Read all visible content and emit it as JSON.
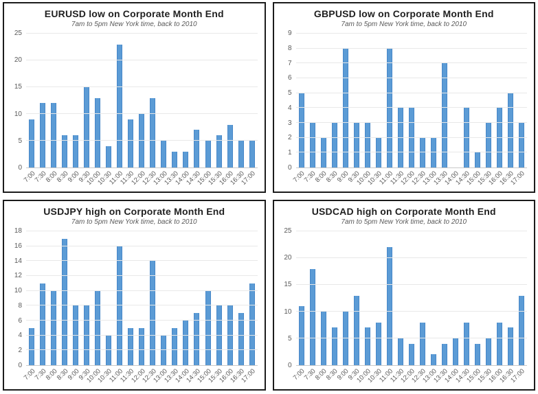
{
  "page": {
    "background_color": "#ffffff",
    "panel_border_color": "#1b1b1b",
    "accent_color": "#5B9BD5",
    "text_color": "#595959",
    "title_color": "#1f1f1f"
  },
  "chart_data": [
    {
      "type": "bar",
      "title": "EURUSD low on Corporate Month End",
      "subtitle": "7am to 5pm New York time, back to 2010",
      "categories": [
        "7:00",
        "7:30",
        "8:00",
        "8:30",
        "9:00",
        "9:30",
        "10:00",
        "10:30",
        "11:00",
        "11:30",
        "12:00",
        "12:30",
        "13:00",
        "13:30",
        "14:00",
        "14:30",
        "15:00",
        "15:30",
        "16:00",
        "16:30",
        "17:00"
      ],
      "values": [
        9,
        12,
        12,
        6,
        6,
        15,
        13,
        4,
        23,
        9,
        10,
        13,
        5,
        3,
        3,
        7,
        5,
        6,
        8,
        5,
        5
      ],
      "xlabel": "",
      "ylabel": "",
      "ylim": [
        0,
        25
      ],
      "yticks": [
        0,
        5,
        10,
        15,
        20,
        25
      ],
      "bar_color": "#5B9BD5",
      "grid": true,
      "legend": "none",
      "xlabel_rotation_deg": 45
    },
    {
      "type": "bar",
      "title": "GBPUSD low on Corporate Month End",
      "subtitle": "7am to 5pm New York time, back to 2010",
      "categories": [
        "7:00",
        "7:30",
        "8:00",
        "8:30",
        "9:00",
        "9:30",
        "10:00",
        "10:30",
        "11:00",
        "11:30",
        "12:00",
        "12:30",
        "13:00",
        "13:30",
        "14:00",
        "14:30",
        "15:00",
        "15:30",
        "16:00",
        "16:30",
        "17:00"
      ],
      "values": [
        5,
        3,
        2,
        3,
        8,
        3,
        3,
        2,
        8,
        4,
        4,
        2,
        2,
        7,
        0,
        4,
        1,
        3,
        4,
        5,
        3
      ],
      "xlabel": "",
      "ylabel": "",
      "ylim": [
        0,
        9
      ],
      "yticks": [
        0,
        1,
        2,
        3,
        4,
        5,
        6,
        7,
        8,
        9
      ],
      "bar_color": "#5B9BD5",
      "grid": true,
      "legend": "none",
      "xlabel_rotation_deg": 45
    },
    {
      "type": "bar",
      "title": "USDJPY high on Corporate Month End",
      "subtitle": "7am to 5pm New York time, back to 2010",
      "categories": [
        "7:00",
        "7:30",
        "8:00",
        "8:30",
        "9:00",
        "9:30",
        "10:00",
        "10:30",
        "11:00",
        "11:30",
        "12:00",
        "12:30",
        "13:00",
        "13:30",
        "14:00",
        "14:30",
        "15:00",
        "15:30",
        "16:00",
        "16:30",
        "17:00"
      ],
      "values": [
        5,
        11,
        10,
        17,
        8,
        8,
        10,
        4,
        16,
        5,
        5,
        14,
        4,
        5,
        6,
        7,
        10,
        8,
        8,
        7,
        11
      ],
      "xlabel": "",
      "ylabel": "",
      "ylim": [
        0,
        18
      ],
      "yticks": [
        0,
        2,
        4,
        6,
        8,
        10,
        12,
        14,
        16,
        18
      ],
      "bar_color": "#5B9BD5",
      "grid": true,
      "legend": "none",
      "xlabel_rotation_deg": 45
    },
    {
      "type": "bar",
      "title": "USDCAD high on Corporate Month End",
      "subtitle": "7am to 5pm New York time, back to 2010",
      "categories": [
        "7:00",
        "7:30",
        "8:00",
        "8:30",
        "9:00",
        "9:30",
        "10:00",
        "10:30",
        "11:00",
        "11:30",
        "12:00",
        "12:30",
        "13:00",
        "13:30",
        "14:00",
        "14:30",
        "15:00",
        "15:30",
        "16:00",
        "16:30",
        "17:00"
      ],
      "values": [
        11,
        18,
        10,
        7,
        10,
        13,
        7,
        8,
        22,
        5,
        4,
        8,
        2,
        4,
        5,
        8,
        4,
        5,
        8,
        7,
        13
      ],
      "xlabel": "",
      "ylabel": "",
      "ylim": [
        0,
        25
      ],
      "yticks": [
        0,
        5,
        10,
        15,
        20,
        25
      ],
      "bar_color": "#5B9BD5",
      "grid": true,
      "legend": "none",
      "xlabel_rotation_deg": 45
    }
  ]
}
